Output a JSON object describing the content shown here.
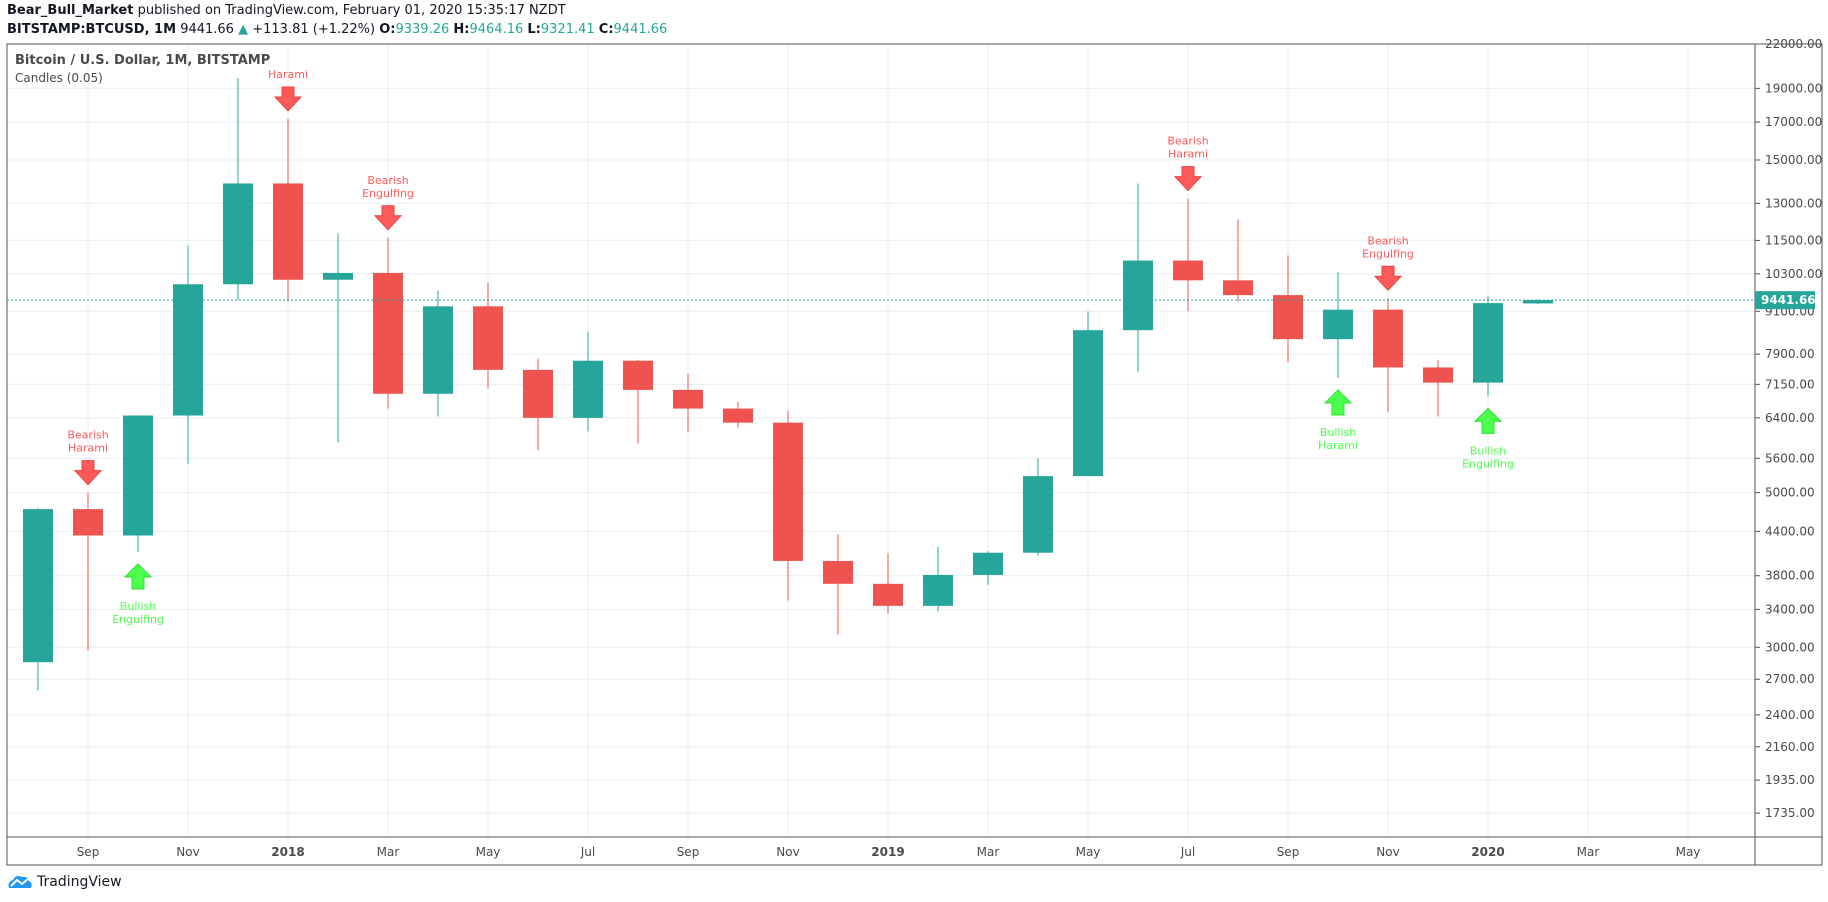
{
  "header": {
    "author": "Bear_Bull_Market",
    "published": "published on TradingView.com, February 01, 2020 15:35:17 NZDT",
    "symbol": "BITSTAMP:BTCUSD, 1M",
    "last": "9441.66",
    "change": "+113.81 (+1.22%)",
    "o_label": "O:",
    "o": "9339.26",
    "h_label": "H:",
    "h": "9464.16",
    "l_label": "L:",
    "l": "9321.41",
    "c_label": "C:",
    "c": "9441.66"
  },
  "legend": {
    "title": "Bitcoin / U.S. Dollar, 1M, BITSTAMP",
    "indicator": "Candles (0.05)"
  },
  "footer": {
    "brand": "TradingView"
  },
  "colors": {
    "up": "#26a69a",
    "down": "#ef5350",
    "bull": "#4cff4c",
    "bear": "#ff5a5a"
  },
  "chart_data": {
    "type": "candlestick",
    "title": "Bitcoin / U.S. Dollar, 1M, BITSTAMP",
    "scale": "log",
    "ylim": [
      1650,
      22000
    ],
    "yticks": [
      22000,
      19000,
      17000,
      15000,
      13000,
      11500,
      10300,
      9100,
      7900,
      7150,
      6400,
      5600,
      5000,
      4400,
      3800,
      3400,
      3000,
      2700,
      2400,
      2160,
      1935,
      1735
    ],
    "ytick_labels": [
      "22000.00",
      "19000.00",
      "17000.00",
      "15000.00",
      "13000.00",
      "11500.00",
      "10300.00",
      "9100.00",
      "7900.00",
      "7150.00",
      "6400.00",
      "5600.00",
      "5000.00",
      "4400.00",
      "3800.00",
      "3400.00",
      "3000.00",
      "2700.00",
      "2400.00",
      "2160.00",
      "1935.00",
      "1735.00"
    ],
    "xticks": [
      {
        "i": 1,
        "label": "Sep"
      },
      {
        "i": 3,
        "label": "Nov"
      },
      {
        "i": 5,
        "label": "2018"
      },
      {
        "i": 7,
        "label": "Mar"
      },
      {
        "i": 9,
        "label": "May"
      },
      {
        "i": 11,
        "label": "Jul"
      },
      {
        "i": 13,
        "label": "Sep"
      },
      {
        "i": 15,
        "label": "Nov"
      },
      {
        "i": 17,
        "label": "2019"
      },
      {
        "i": 19,
        "label": "Mar"
      },
      {
        "i": 21,
        "label": "May"
      },
      {
        "i": 23,
        "label": "Jul"
      },
      {
        "i": 25,
        "label": "Sep"
      },
      {
        "i": 27,
        "label": "Nov"
      },
      {
        "i": 29,
        "label": "2020"
      },
      {
        "i": 31,
        "label": "Mar"
      },
      {
        "i": 33,
        "label": "May"
      }
    ],
    "last_price": "9441.66",
    "candles": [
      [
        2856,
        4750,
        2600,
        4735
      ],
      [
        4735,
        5000,
        2970,
        4340
      ],
      [
        4340,
        6450,
        4110,
        6450
      ],
      [
        6450,
        11300,
        5500,
        9950
      ],
      [
        9950,
        19666,
        9450,
        13880
      ],
      [
        13880,
        17176,
        9400,
        10100
      ],
      [
        10100,
        11780,
        5900,
        10330
      ],
      [
        10330,
        11600,
        6600,
        6930
      ],
      [
        6930,
        9750,
        6430,
        9250
      ],
      [
        9250,
        10000,
        7050,
        7500
      ],
      [
        7500,
        7780,
        5750,
        6400
      ],
      [
        6400,
        8500,
        6120,
        7730
      ],
      [
        7730,
        7750,
        5880,
        7020
      ],
      [
        7020,
        7400,
        6100,
        6600
      ],
      [
        6600,
        6750,
        6200,
        6300
      ],
      [
        6300,
        6550,
        3500,
        3990
      ],
      [
        3990,
        4360,
        3130,
        3700
      ],
      [
        3700,
        4090,
        3350,
        3440
      ],
      [
        3440,
        4180,
        3380,
        3810
      ],
      [
        3810,
        4120,
        3690,
        4100
      ],
      [
        4100,
        5600,
        4060,
        5280
      ],
      [
        5280,
        9100,
        5330,
        8550
      ],
      [
        8550,
        13880,
        7450,
        10760
      ],
      [
        10760,
        13200,
        9100,
        10080
      ],
      [
        10080,
        12330,
        9400,
        9600
      ],
      [
        9600,
        10950,
        7700,
        8300
      ],
      [
        8300,
        10350,
        7300,
        9150
      ],
      [
        9150,
        9500,
        6520,
        7560
      ],
      [
        7560,
        7750,
        6430,
        7190
      ],
      [
        7190,
        9560,
        6870,
        9350
      ],
      [
        9339.26,
        9464.16,
        9321.41,
        9441.66
      ]
    ],
    "annotations": [
      {
        "i": 1,
        "type": "bear",
        "text": [
          "Bearish",
          "Harami"
        ]
      },
      {
        "i": 2,
        "type": "bull",
        "text": [
          "Bullish",
          "Engulfing"
        ]
      },
      {
        "i": 5,
        "type": "bear",
        "text": [
          "",
          "Harami"
        ]
      },
      {
        "i": 7,
        "type": "bear",
        "text": [
          "Bearish",
          "Engulfing"
        ]
      },
      {
        "i": 23,
        "type": "bear",
        "text": [
          "Bearish",
          "Harami"
        ]
      },
      {
        "i": 26,
        "type": "bull",
        "text": [
          "Bullish",
          "Harami"
        ]
      },
      {
        "i": 27,
        "type": "bear",
        "text": [
          "Bearish",
          "Engulfing"
        ]
      },
      {
        "i": 29,
        "type": "bull",
        "text": [
          "Bullish",
          "Engulfing"
        ]
      }
    ]
  }
}
